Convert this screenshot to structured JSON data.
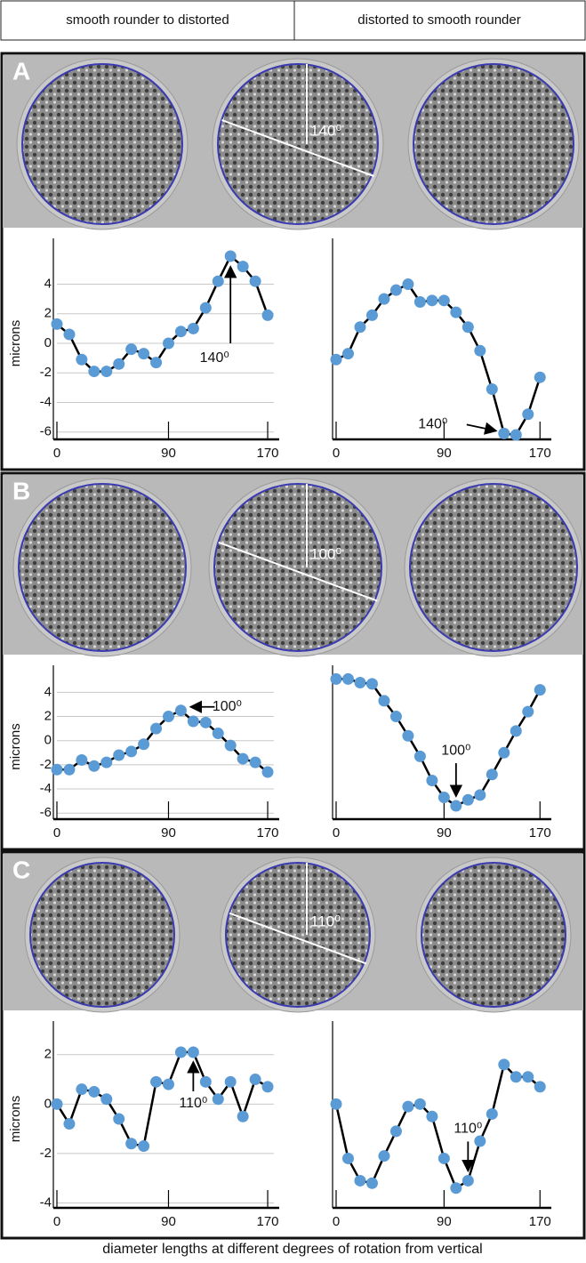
{
  "header": {
    "left": "smooth rounder to distorted",
    "right": "distorted to smooth rounder"
  },
  "panels": [
    {
      "label": "A",
      "angle_label": "140⁰"
    },
    {
      "label": "B",
      "angle_label": "100⁰"
    },
    {
      "label": "C",
      "angle_label": "110⁰"
    }
  ],
  "chart_data": [
    {
      "type": "line",
      "ylabel": "microns",
      "x": [
        0,
        10,
        20,
        30,
        40,
        50,
        60,
        70,
        80,
        90,
        100,
        110,
        120,
        130,
        140,
        150,
        160,
        170
      ],
      "values": [
        1.3,
        0.6,
        -1.1,
        -1.9,
        -1.9,
        -1.4,
        -0.4,
        -0.7,
        -1.3,
        0,
        0.8,
        1.0,
        2.4,
        4.2,
        5.9,
        5.2,
        4.2,
        1.9
      ],
      "color": "#5b9bd5",
      "xlim": [
        0,
        175
      ],
      "xticks": [
        0,
        90,
        170
      ],
      "ylim": [
        -6.5,
        6.5
      ],
      "yticks": [
        -6,
        -4,
        -2,
        0,
        2,
        4
      ],
      "grid": true,
      "annotation": {
        "text": "140⁰",
        "x": 140
      }
    },
    {
      "type": "line",
      "x": [
        0,
        10,
        20,
        30,
        40,
        50,
        60,
        70,
        80,
        90,
        100,
        110,
        120,
        130,
        140,
        150,
        160,
        170
      ],
      "values": [
        -1.1,
        -0.7,
        1.1,
        1.9,
        3.0,
        3.6,
        4.0,
        2.8,
        2.9,
        2.9,
        2.1,
        1.1,
        -0.5,
        -3.1,
        -6.1,
        -6.2,
        -4.8,
        -2.3
      ],
      "color": "#5b9bd5",
      "xlim": [
        0,
        175
      ],
      "xticks": [
        0,
        90,
        170
      ],
      "ylim": [
        -6.5,
        6.5
      ],
      "annotation": {
        "text": "140⁰",
        "x": 140
      }
    },
    {
      "type": "line",
      "ylabel": "microns",
      "x": [
        0,
        10,
        20,
        30,
        40,
        50,
        60,
        70,
        80,
        90,
        100,
        110,
        120,
        130,
        140,
        150,
        160,
        170
      ],
      "values": [
        -2.4,
        -2.4,
        -1.6,
        -2.1,
        -1.8,
        -1.2,
        -0.9,
        -0.3,
        1.0,
        2.0,
        2.5,
        1.6,
        1.5,
        0.6,
        -0.4,
        -1.5,
        -1.8,
        -2.6
      ],
      "color": "#5b9bd5",
      "xlim": [
        0,
        175
      ],
      "xticks": [
        0,
        90,
        170
      ],
      "ylim": [
        -6.5,
        5.5
      ],
      "yticks": [
        -6,
        -4,
        -2,
        0,
        2,
        4
      ],
      "grid": true,
      "annotation": {
        "text": "100⁰",
        "x": 100
      }
    },
    {
      "type": "line",
      "x": [
        0,
        10,
        20,
        30,
        40,
        50,
        60,
        70,
        80,
        90,
        100,
        110,
        120,
        130,
        140,
        150,
        160,
        170
      ],
      "values": [
        5.1,
        5.1,
        4.8,
        4.7,
        3.3,
        2.0,
        0.4,
        -1.3,
        -3.3,
        -4.7,
        -5.4,
        -4.9,
        -4.5,
        -2.8,
        -1.0,
        0.8,
        2.4,
        4.2
      ],
      "color": "#5b9bd5",
      "xlim": [
        0,
        175
      ],
      "xticks": [
        0,
        90,
        170
      ],
      "ylim": [
        -6.5,
        5.5
      ],
      "annotation": {
        "text": "100⁰",
        "x": 100
      }
    },
    {
      "type": "line",
      "ylabel": "microns",
      "x": [
        0,
        10,
        20,
        30,
        40,
        50,
        60,
        70,
        80,
        90,
        100,
        110,
        120,
        130,
        140,
        150,
        160,
        170
      ],
      "values": [
        0,
        -0.8,
        0.6,
        0.5,
        0.2,
        -0.6,
        -1.6,
        -1.7,
        0.9,
        0.8,
        2.1,
        2.1,
        0.9,
        0.2,
        0.9,
        -0.5,
        1.0,
        0.7
      ],
      "color": "#5b9bd5",
      "xlim": [
        0,
        175
      ],
      "xticks": [
        0,
        90,
        170
      ],
      "ylim": [
        -4.2,
        3
      ],
      "yticks": [
        -4,
        -2,
        0,
        2
      ],
      "grid": true,
      "annotation": {
        "text": "110⁰",
        "x": 110
      }
    },
    {
      "type": "line",
      "x": [
        0,
        10,
        20,
        30,
        40,
        50,
        60,
        70,
        80,
        90,
        100,
        110,
        120,
        130,
        140,
        150,
        160,
        170
      ],
      "values": [
        0,
        -2.2,
        -3.1,
        -3.2,
        -2.1,
        -1.1,
        -0.1,
        0,
        -0.5,
        -2.2,
        -3.4,
        -3.1,
        -1.5,
        -0.4,
        1.6,
        1.1,
        1.1,
        0.7
      ],
      "color": "#5b9bd5",
      "xlim": [
        0,
        175
      ],
      "xticks": [
        0,
        90,
        170
      ],
      "ylim": [
        -4.2,
        3
      ],
      "annotation": {
        "text": "110⁰",
        "x": 110
      }
    }
  ],
  "footer": "diameter lengths at different degrees of rotation from vertical"
}
